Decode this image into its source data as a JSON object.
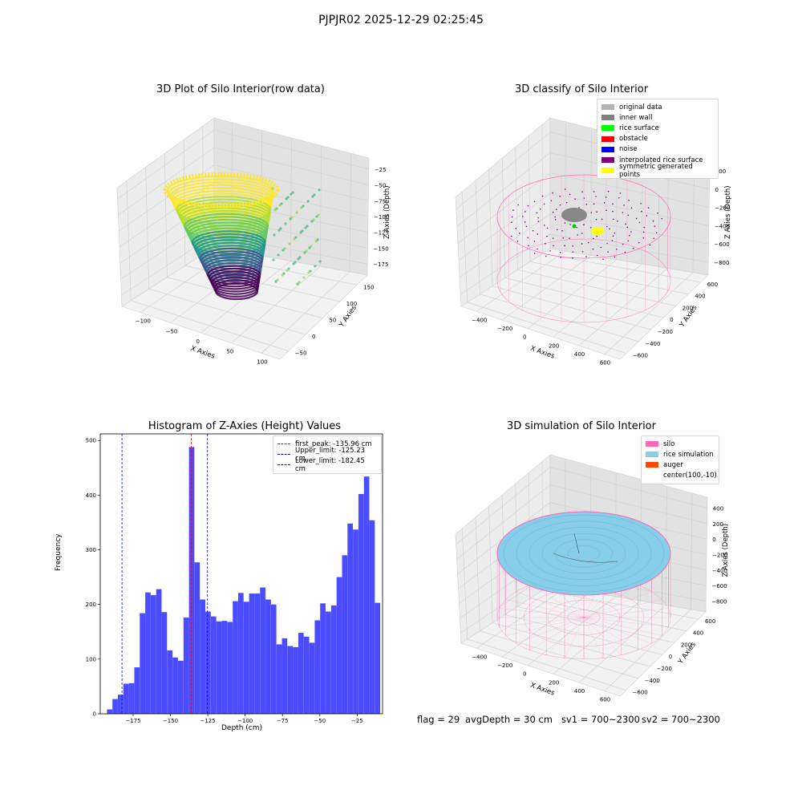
{
  "suptitle": "PJPJR02 2025-12-29 02:25:45",
  "status": {
    "flag": "flag = 29",
    "avg_depth": "avgDepth = 30 cm",
    "sv1": "sv1 = 700~2300",
    "sv2": "sv2 = 700~2300"
  },
  "colors": {
    "hist_bar": "#4b4bff",
    "first_peak": "#ff0000",
    "limits": "#0000ff",
    "silo": "#ff69b4",
    "rice": "#87ceeb",
    "auger": "#ff4500"
  },
  "chart_data": [
    {
      "type": "scatter",
      "title": "3D Plot of Silo Interior(row data)",
      "xlabel": "X Axies",
      "ylabel": "Y Axies",
      "zlabel": "Z Axies (Depth)",
      "xticks": [
        "−100",
        "−50",
        "0",
        "50",
        "100"
      ],
      "yticks": [
        "−50",
        "0",
        "50",
        "100",
        "150"
      ],
      "zticks": [
        "−25",
        "−50",
        "−75",
        "−100",
        "−125",
        "−150",
        "−175"
      ],
      "colormap": "viridis"
    },
    {
      "type": "scatter",
      "title": "3D classify of Silo Interior",
      "xlabel": "X Axies",
      "ylabel": "Y Axies",
      "zlabel": "Z Axies (Depth)",
      "xticks": [
        "−400",
        "−200",
        "0",
        "200",
        "400",
        "600"
      ],
      "yticks": [
        "−600",
        "−400",
        "−200",
        "0",
        "200",
        "400",
        "600"
      ],
      "zticks": [
        "200",
        "0",
        "−200",
        "−400",
        "−600",
        "−800"
      ],
      "legend": [
        {
          "label": "original data",
          "color": "#b3b3b3"
        },
        {
          "label": "inner wall",
          "color": "#808080"
        },
        {
          "label": "rice surface",
          "color": "#00ff00"
        },
        {
          "label": "obstacle",
          "color": "#ff0000"
        },
        {
          "label": "noise",
          "color": "#0000ff"
        },
        {
          "label": "interpolated rice surface",
          "color": "#800080"
        },
        {
          "label": "symmetric generated points",
          "color": "#ffff00"
        }
      ]
    },
    {
      "type": "bar",
      "title": "Histogram of Z-Axies (Height) Values",
      "xlabel": "Depth (cm)",
      "ylabel": "Frequency",
      "xlim": [
        -197,
        -8
      ],
      "ylim": [
        0,
        512
      ],
      "xticks": [
        -175,
        -150,
        -125,
        -100,
        -75,
        -50,
        -25
      ],
      "xtick_labels": [
        "−175",
        "−150",
        "−125",
        "−100",
        "−75",
        "−50",
        "−25"
      ],
      "yticks": [
        0,
        100,
        200,
        300,
        400,
        500
      ],
      "bin_start": -192.5,
      "bin_width": 3.66,
      "values": [
        8,
        27,
        35,
        55,
        56,
        85,
        184,
        222,
        217,
        228,
        186,
        116,
        103,
        97,
        176,
        488,
        277,
        209,
        187,
        178,
        169,
        170,
        168,
        206,
        221,
        205,
        220,
        220,
        231,
        209,
        200,
        127,
        138,
        124,
        122,
        148,
        141,
        130,
        171,
        202,
        187,
        198,
        250,
        290,
        348,
        337,
        402,
        434,
        354,
        203
      ],
      "lines": [
        {
          "label": "first_peak: -135.96 cm",
          "x": -135.96,
          "color": "#ff0000"
        },
        {
          "label": "Upper_limit: -125.23 cm",
          "x": -125.23,
          "color": "#0000ff"
        },
        {
          "label": "Lower_limit: -182.45 cm",
          "x": -182.45,
          "color": "#0000ff"
        }
      ]
    },
    {
      "type": "scatter",
      "title": "3D simulation of Silo Interior",
      "xlabel": "X Axies",
      "ylabel": "Y Axies",
      "zlabel": "Z Axies (Depth)",
      "xticks": [
        "−400",
        "−200",
        "0",
        "200",
        "400",
        "600"
      ],
      "yticks": [
        "−600",
        "−400",
        "−200",
        "0",
        "200",
        "400",
        "600"
      ],
      "zticks": [
        "400",
        "200",
        "0",
        "−200",
        "−400",
        "−600",
        "−800"
      ],
      "legend": [
        {
          "label": "silo",
          "color": "#ff69b4"
        },
        {
          "label": "rice simulation",
          "color": "#87ceeb"
        },
        {
          "label": "auger",
          "color": "#ff4500"
        },
        {
          "label": "center(100,-10)",
          "color": ""
        }
      ]
    }
  ]
}
